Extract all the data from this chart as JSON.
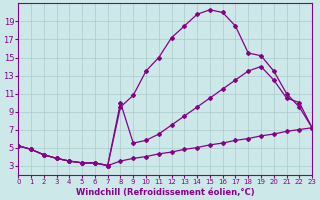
{
  "background_color": "#cce8e8",
  "line_color": "#880088",
  "grid_color": "#aacccc",
  "xlabel": "Windchill (Refroidissement éolien,°C)",
  "xlim": [
    0,
    23
  ],
  "ylim": [
    2,
    21
  ],
  "yticks": [
    3,
    5,
    7,
    9,
    11,
    13,
    15,
    17,
    19
  ],
  "xticks": [
    0,
    1,
    2,
    3,
    4,
    5,
    6,
    7,
    8,
    9,
    10,
    11,
    12,
    13,
    14,
    15,
    16,
    17,
    18,
    19,
    20,
    21,
    22,
    23
  ],
  "curve1_x": [
    0,
    1,
    2,
    3,
    4,
    5,
    6,
    7,
    8,
    9,
    10,
    11,
    12,
    13,
    14,
    15,
    16,
    17,
    18,
    19,
    20,
    21,
    22,
    23
  ],
  "curve1_y": [
    5.2,
    4.8,
    4.2,
    3.8,
    3.5,
    3.3,
    3.3,
    3.0,
    9.5,
    10.8,
    13.5,
    15.0,
    17.2,
    18.5,
    19.8,
    20.3,
    20.0,
    18.5,
    15.5,
    15.2,
    13.5,
    11.0,
    9.5,
    7.2
  ],
  "curve2_x": [
    0,
    1,
    2,
    3,
    4,
    5,
    6,
    7,
    8,
    9,
    10,
    11,
    12,
    13,
    14,
    15,
    16,
    17,
    18,
    19,
    20,
    21,
    22,
    23
  ],
  "curve2_y": [
    5.2,
    4.8,
    4.2,
    3.8,
    3.5,
    3.3,
    3.3,
    3.0,
    10.0,
    5.5,
    5.8,
    6.5,
    7.5,
    8.5,
    9.5,
    10.5,
    11.5,
    12.5,
    13.5,
    14.0,
    12.5,
    10.5,
    10.0,
    7.2
  ],
  "curve3_x": [
    0,
    1,
    2,
    3,
    4,
    5,
    6,
    7,
    8,
    9,
    10,
    11,
    12,
    13,
    14,
    15,
    16,
    17,
    18,
    19,
    20,
    21,
    22,
    23
  ],
  "curve3_y": [
    5.2,
    4.8,
    4.2,
    3.8,
    3.5,
    3.3,
    3.3,
    3.0,
    3.5,
    3.8,
    4.0,
    4.3,
    4.5,
    4.8,
    5.0,
    5.3,
    5.5,
    5.8,
    6.0,
    6.3,
    6.5,
    6.8,
    7.0,
    7.2
  ],
  "xlabel_fontsize": 6,
  "tick_fontsize_x": 5.0,
  "tick_fontsize_y": 6.0,
  "line_width": 0.9,
  "marker": "D",
  "marker_size": 2.0
}
